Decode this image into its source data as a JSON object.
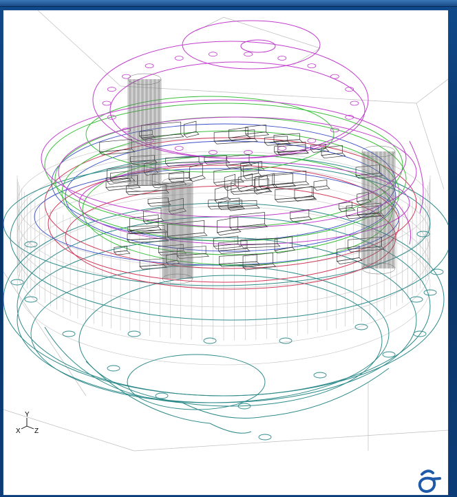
{
  "window": {
    "title": ""
  },
  "viewport": {
    "background": "#ffffff",
    "triad": {
      "up_label": "Y",
      "left_label": "X",
      "right_label": "Z"
    },
    "logo_icon": "sigma-logo-icon"
  },
  "colors": {
    "frame_blue": "#0b3a74",
    "magenta": "#c03ccc",
    "green": "#3cc03c",
    "teal": "#2e8a8a",
    "red": "#d23a5a",
    "blue": "#3a4fc8",
    "mesh_gray": "#9a9a9a",
    "logo_blue": "#1e5aa8"
  },
  "scene": {
    "description_layers": [
      "cylinder-pillars",
      "magenta-rings",
      "green-rings",
      "red-rings",
      "blue-rings",
      "teal-base-rings",
      "pcb-components"
    ]
  }
}
